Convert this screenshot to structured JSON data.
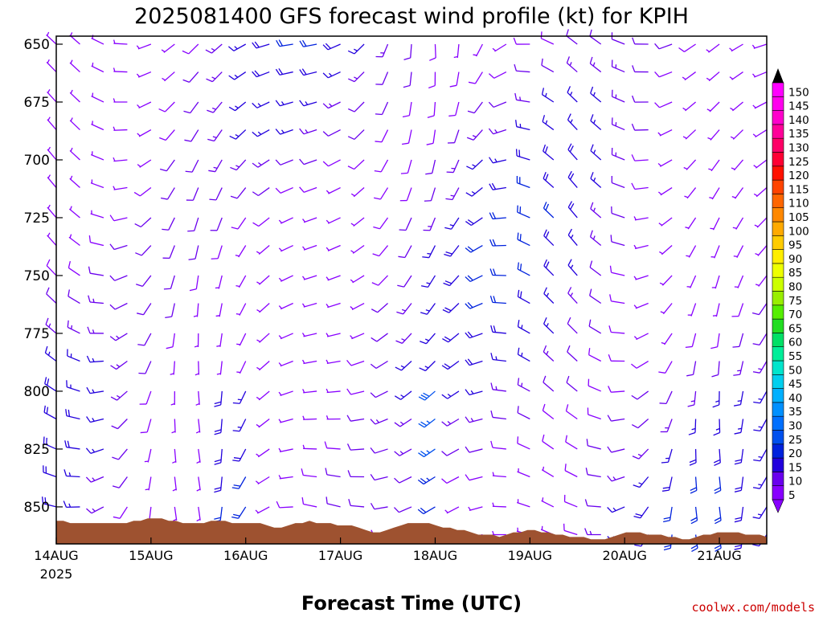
{
  "chart_data": {
    "type": "wind-barb-profile",
    "title": "2025081400 GFS forecast wind profile (kt) for KPIH",
    "xlabel": "Forecast Time (UTC)",
    "ylabel": "",
    "x_ticks": [
      "14AUG",
      "15AUG",
      "16AUG",
      "17AUG",
      "18AUG",
      "19AUG",
      "20AUG",
      "21AUG"
    ],
    "x_year_label": "2025",
    "y_ticks": [
      650,
      675,
      700,
      725,
      750,
      775,
      800,
      825,
      850
    ],
    "ylim": [
      650,
      866
    ],
    "y_inverted": true,
    "x_range_days": [
      0,
      7.5
    ],
    "pressure_levels": [
      650,
      662,
      675,
      687,
      700,
      712,
      725,
      737,
      750,
      762,
      775,
      787,
      800,
      812,
      825,
      837,
      850,
      862
    ],
    "time_step_hours": 6,
    "colorbar": {
      "unit": "kt",
      "levels": [
        5,
        10,
        15,
        20,
        25,
        30,
        35,
        40,
        45,
        50,
        55,
        60,
        65,
        70,
        75,
        80,
        85,
        90,
        95,
        100,
        105,
        110,
        115,
        120,
        125,
        130,
        135,
        140,
        145,
        150
      ],
      "colors": [
        "#8800ff",
        "#6a00ee",
        "#2200dd",
        "#0022dd",
        "#0050ee",
        "#0070ff",
        "#0090ff",
        "#00b0ff",
        "#00cfee",
        "#00e5cc",
        "#00ee99",
        "#00e066",
        "#22dd22",
        "#55ee00",
        "#99ee00",
        "#ccff00",
        "#eeff00",
        "#ffee00",
        "#ffcc00",
        "#ffaa00",
        "#ff8800",
        "#ff6600",
        "#ff4400",
        "#ff1100",
        "#ff0033",
        "#ff0066",
        "#ff0099",
        "#ff00cc",
        "#ff00ee",
        "#ff00ff"
      ]
    },
    "terrain_color": "#9e5230",
    "terrain_surface_hpa": [
      856,
      856,
      857,
      857,
      857,
      857,
      857,
      857,
      857,
      857,
      857,
      856,
      856,
      855,
      855,
      855,
      856,
      856,
      857,
      857,
      857,
      857,
      856,
      856,
      856,
      857,
      857,
      857,
      857,
      857,
      858,
      859,
      859,
      858,
      857,
      857,
      856,
      857,
      857,
      857,
      858,
      858,
      858,
      859,
      860,
      861,
      861,
      860,
      859,
      858,
      857,
      857,
      857,
      857,
      858,
      859,
      859,
      860,
      860,
      861,
      862,
      862,
      862,
      863,
      862,
      861,
      861,
      860,
      860,
      861,
      861,
      862,
      862,
      863,
      863,
      863,
      864,
      864,
      864,
      863,
      862,
      861,
      861,
      861,
      862,
      862,
      862,
      863,
      863,
      864,
      864,
      863,
      862,
      862,
      861,
      861,
      861,
      861,
      862,
      862,
      862,
      863
    ]
  },
  "footer": {
    "credit": "coolwx.com/models"
  }
}
